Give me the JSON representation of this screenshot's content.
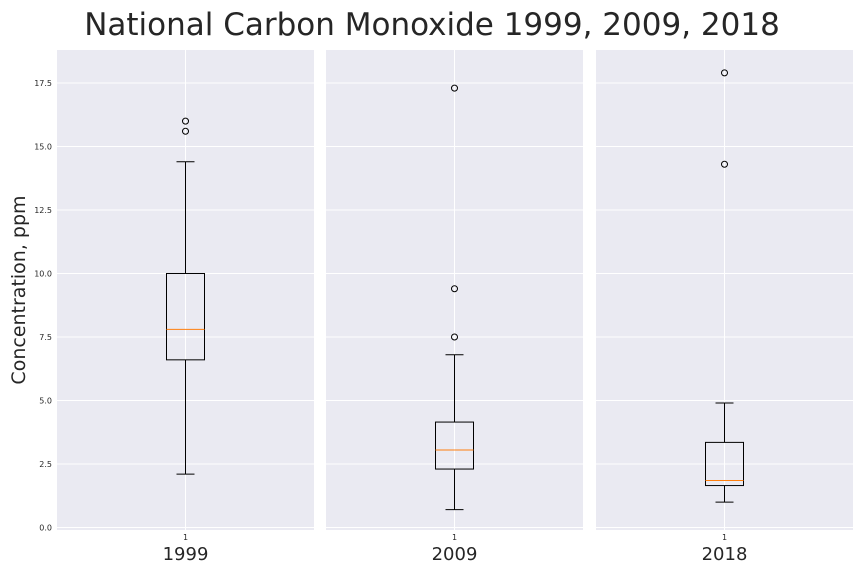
{
  "chart_data": {
    "type": "boxplot",
    "title": "National Carbon Monoxide 1999, 2009, 2018",
    "ylabel": "Concentration, ppm",
    "ylim": [
      -0.1,
      18.8
    ],
    "yticks": [
      "0.0",
      "2.5",
      "5.0",
      "7.5",
      "10.0",
      "12.5",
      "15.0",
      "17.5"
    ],
    "grid": true,
    "colors": {
      "panel": "#eaeaf2",
      "grid": "#ffffff",
      "box": "#000000",
      "median": "#ff7f0e"
    },
    "panels": [
      {
        "xlabel": "1999",
        "xtick": "1",
        "whisker_low": 2.1,
        "q1": 6.6,
        "median": 7.8,
        "q3": 10.0,
        "whisker_high": 14.4,
        "outliers": [
          15.6,
          16.0
        ]
      },
      {
        "xlabel": "2009",
        "xtick": "1",
        "whisker_low": 0.7,
        "q1": 2.3,
        "median": 3.05,
        "q3": 4.15,
        "whisker_high": 6.8,
        "outliers": [
          7.5,
          9.4,
          17.3
        ]
      },
      {
        "xlabel": "2018",
        "xtick": "1",
        "whisker_low": 1.0,
        "q1": 1.65,
        "median": 1.85,
        "q3": 3.35,
        "whisker_high": 4.9,
        "outliers": [
          14.3,
          17.9
        ]
      }
    ]
  }
}
